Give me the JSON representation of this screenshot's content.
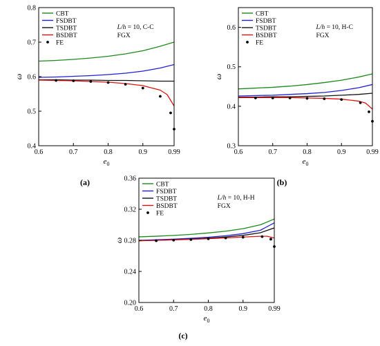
{
  "panels": [
    {
      "id": "a",
      "caption": "(a)",
      "annotation": [
        "L/h = 10, C-C",
        "FGX"
      ],
      "chart_data": {
        "type": "line",
        "xlabel": "e0",
        "ylabel": "ω",
        "xlim": [
          0.6,
          0.99
        ],
        "ylim": [
          0.4,
          0.8
        ],
        "xticks": [
          "0.6",
          "0.7",
          "0.8",
          "0.9",
          "0.99"
        ],
        "xtick_values": [
          0.6,
          0.7,
          0.8,
          0.9,
          0.99
        ],
        "yticks": [
          "0.4",
          "0.5",
          "0.6",
          "0.7",
          "0.8"
        ],
        "ytick_values": [
          0.4,
          0.5,
          0.6,
          0.7,
          0.8
        ],
        "grid": false,
        "legend_position": "top-left",
        "series": [
          {
            "name": "CBT",
            "color": "#1a8a1a",
            "kind": "line",
            "x": [
              0.6,
              0.65,
              0.7,
              0.75,
              0.8,
              0.85,
              0.9,
              0.95,
              0.99
            ],
            "y": [
              0.645,
              0.647,
              0.65,
              0.654,
              0.659,
              0.666,
              0.675,
              0.688,
              0.7
            ]
          },
          {
            "name": "FSDBT",
            "color": "#1f1fd6",
            "kind": "line",
            "x": [
              0.6,
              0.65,
              0.7,
              0.75,
              0.8,
              0.85,
              0.9,
              0.95,
              0.99
            ],
            "y": [
              0.598,
              0.599,
              0.601,
              0.603,
              0.606,
              0.61,
              0.616,
              0.625,
              0.635
            ]
          },
          {
            "name": "TSDBT",
            "color": "#111111",
            "kind": "line",
            "x": [
              0.6,
              0.65,
              0.7,
              0.75,
              0.8,
              0.85,
              0.9,
              0.95,
              0.99
            ],
            "y": [
              0.591,
              0.591,
              0.59,
              0.59,
              0.589,
              0.589,
              0.588,
              0.587,
              0.587
            ]
          },
          {
            "name": "BSDBT",
            "color": "#e01010",
            "kind": "line",
            "x": [
              0.6,
              0.65,
              0.7,
              0.75,
              0.8,
              0.85,
              0.9,
              0.95,
              0.97,
              0.99
            ],
            "y": [
              0.59,
              0.589,
              0.588,
              0.586,
              0.584,
              0.58,
              0.574,
              0.561,
              0.548,
              0.515
            ]
          },
          {
            "name": "FE",
            "color": "#000000",
            "kind": "points",
            "x": [
              0.65,
              0.7,
              0.75,
              0.8,
              0.85,
              0.9,
              0.95,
              0.98,
              0.99
            ],
            "y": [
              0.589,
              0.588,
              0.586,
              0.583,
              0.578,
              0.567,
              0.543,
              0.495,
              0.448
            ]
          }
        ]
      }
    },
    {
      "id": "b",
      "caption": "(b)",
      "annotation": [
        "L/h = 10, H-C",
        "FGX"
      ],
      "chart_data": {
        "type": "line",
        "xlabel": "e0",
        "ylabel": "ω",
        "xlim": [
          0.6,
          0.99
        ],
        "ylim": [
          0.3,
          0.65
        ],
        "xticks": [
          "0.6",
          "0.7",
          "0.8",
          "0.9",
          "0.99"
        ],
        "xtick_values": [
          0.6,
          0.7,
          0.8,
          0.9,
          0.99
        ],
        "yticks": [
          "0.3",
          "0.4",
          "0.5",
          "0.6"
        ],
        "ytick_values": [
          0.3,
          0.4,
          0.5,
          0.6
        ],
        "grid": false,
        "legend_position": "top-left",
        "series": [
          {
            "name": "CBT",
            "color": "#1a8a1a",
            "kind": "line",
            "x": [
              0.6,
              0.65,
              0.7,
              0.75,
              0.8,
              0.85,
              0.9,
              0.95,
              0.99
            ],
            "y": [
              0.444,
              0.446,
              0.448,
              0.451,
              0.455,
              0.46,
              0.466,
              0.474,
              0.482
            ]
          },
          {
            "name": "FSDBT",
            "color": "#1f1fd6",
            "kind": "line",
            "x": [
              0.6,
              0.65,
              0.7,
              0.75,
              0.8,
              0.85,
              0.9,
              0.95,
              0.99
            ],
            "y": [
              0.426,
              0.427,
              0.428,
              0.43,
              0.432,
              0.435,
              0.44,
              0.447,
              0.455
            ]
          },
          {
            "name": "TSDBT",
            "color": "#111111",
            "kind": "line",
            "x": [
              0.6,
              0.65,
              0.7,
              0.75,
              0.8,
              0.85,
              0.9,
              0.95,
              0.99
            ],
            "y": [
              0.423,
              0.423,
              0.424,
              0.424,
              0.425,
              0.426,
              0.428,
              0.43,
              0.433
            ]
          },
          {
            "name": "BSDBT",
            "color": "#e01010",
            "kind": "line",
            "x": [
              0.6,
              0.65,
              0.7,
              0.75,
              0.8,
              0.85,
              0.9,
              0.95,
              0.97,
              0.99
            ],
            "y": [
              0.422,
              0.422,
              0.422,
              0.422,
              0.421,
              0.42,
              0.418,
              0.413,
              0.408,
              0.393
            ]
          },
          {
            "name": "FE",
            "color": "#000000",
            "kind": "points",
            "x": [
              0.65,
              0.7,
              0.75,
              0.8,
              0.85,
              0.9,
              0.955,
              0.98,
              0.99
            ],
            "y": [
              0.421,
              0.421,
              0.421,
              0.42,
              0.419,
              0.417,
              0.409,
              0.386,
              0.362
            ]
          }
        ]
      }
    },
    {
      "id": "c",
      "caption": "(c)",
      "annotation": [
        "L/h = 10, H-H",
        "FGX"
      ],
      "chart_data": {
        "type": "line",
        "xlabel": "e0",
        "ylabel": "ω",
        "xlim": [
          0.6,
          0.99
        ],
        "ylim": [
          0.2,
          0.36
        ],
        "xticks": [
          "0.6",
          "0.7",
          "0.8",
          "0.9",
          "0.99"
        ],
        "xtick_values": [
          0.6,
          0.7,
          0.8,
          0.9,
          0.99
        ],
        "yticks": [
          "0.20",
          "0.24",
          "0.28",
          "0.32",
          "0.36"
        ],
        "ytick_values": [
          0.2,
          0.24,
          0.28,
          0.32,
          0.36
        ],
        "grid": false,
        "legend_position": "top-left",
        "series": [
          {
            "name": "CBT",
            "color": "#1a8a1a",
            "kind": "line",
            "x": [
              0.6,
              0.65,
              0.7,
              0.75,
              0.8,
              0.85,
              0.9,
              0.95,
              0.99
            ],
            "y": [
              0.2845,
              0.2853,
              0.2863,
              0.2877,
              0.2895,
              0.2918,
              0.295,
              0.3,
              0.3075
            ]
          },
          {
            "name": "FSDBT",
            "color": "#1f1fd6",
            "kind": "line",
            "x": [
              0.6,
              0.65,
              0.7,
              0.75,
              0.8,
              0.85,
              0.9,
              0.95,
              0.99
            ],
            "y": [
              0.28,
              0.2807,
              0.2815,
              0.2826,
              0.284,
              0.2859,
              0.2886,
              0.293,
              0.3025
            ]
          },
          {
            "name": "TSDBT",
            "color": "#111111",
            "kind": "line",
            "x": [
              0.6,
              0.65,
              0.7,
              0.75,
              0.8,
              0.85,
              0.9,
              0.95,
              0.99
            ],
            "y": [
              0.2795,
              0.28,
              0.2807,
              0.2816,
              0.2828,
              0.2843,
              0.2864,
              0.2898,
              0.296
            ]
          },
          {
            "name": "BSDBT",
            "color": "#e01010",
            "kind": "line",
            "x": [
              0.6,
              0.65,
              0.7,
              0.75,
              0.8,
              0.85,
              0.9,
              0.95,
              0.97,
              0.99
            ],
            "y": [
              0.2795,
              0.28,
              0.2806,
              0.2813,
              0.2821,
              0.2831,
              0.2842,
              0.2852,
              0.2852,
              0.283
            ]
          },
          {
            "name": "FE",
            "color": "#000000",
            "kind": "points",
            "x": [
              0.65,
              0.7,
              0.75,
              0.8,
              0.85,
              0.9,
              0.955,
              0.98,
              0.99
            ],
            "y": [
              0.2795,
              0.2802,
              0.281,
              0.282,
              0.283,
              0.284,
              0.2848,
              0.2815,
              0.272
            ]
          }
        ]
      }
    }
  ]
}
